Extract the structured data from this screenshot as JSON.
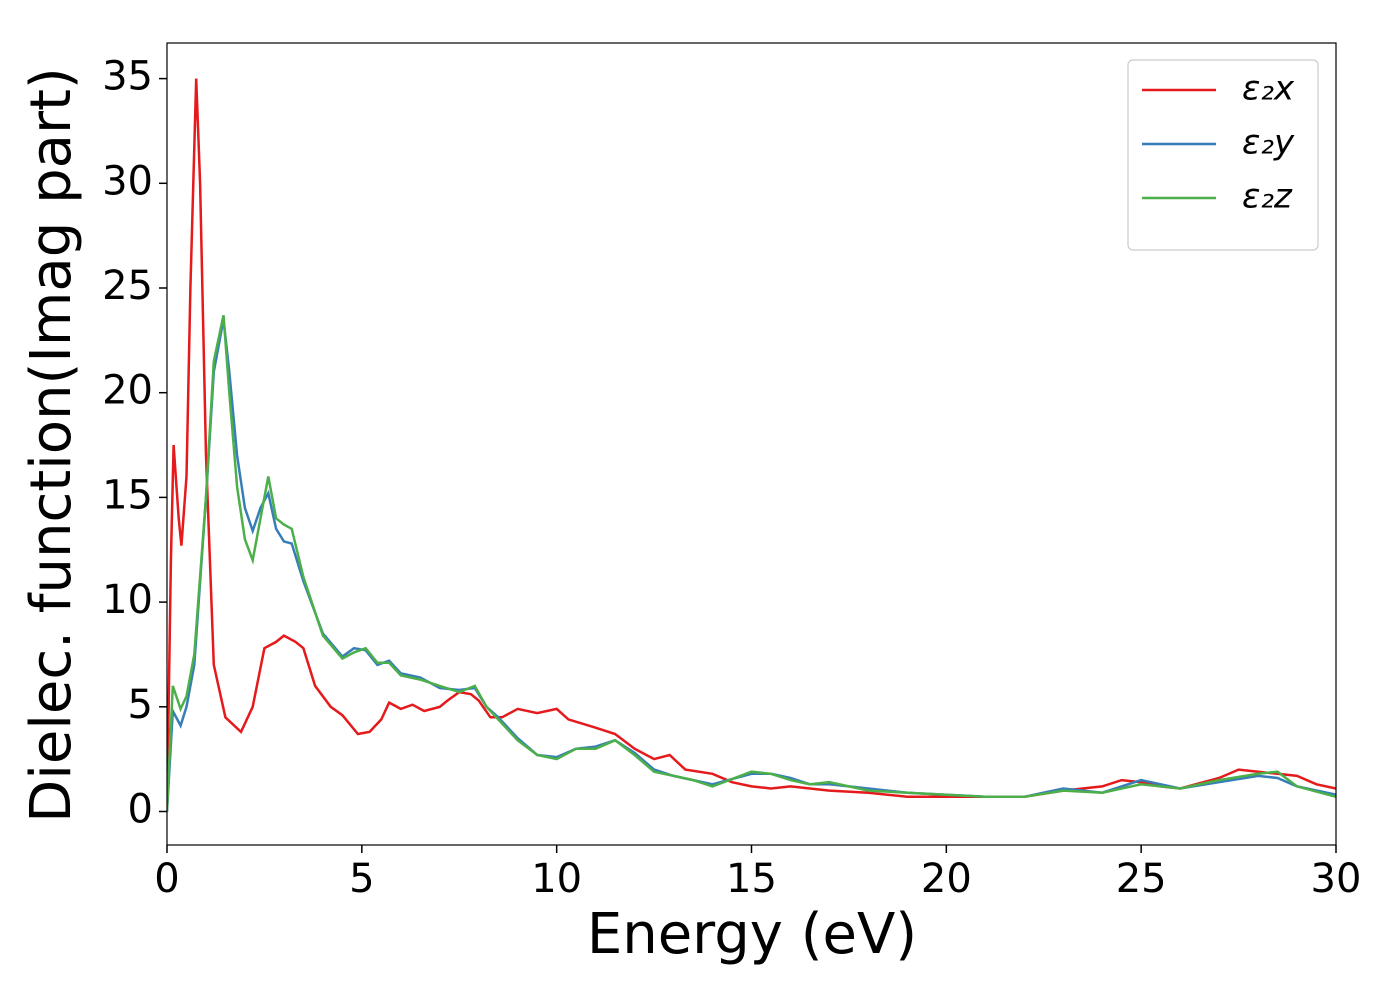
{
  "chart_data": {
    "type": "line",
    "xlabel": "Energy (eV)",
    "ylabel": "Dielec. function(Imag part)",
    "xlim": [
      0,
      30
    ],
    "ylim": [
      -1.6,
      36.7
    ],
    "xticks": [
      0,
      5,
      10,
      15,
      20,
      25,
      30
    ],
    "yticks": [
      0,
      5,
      10,
      15,
      20,
      25,
      30,
      35
    ],
    "legend": "upper right",
    "series": [
      {
        "name": "ε₂x",
        "color": "#e41a1c",
        "x": [
          0,
          0.1,
          0.17,
          0.3,
          0.37,
          0.5,
          0.6,
          0.75,
          0.85,
          1.0,
          1.2,
          1.5,
          1.9,
          2.2,
          2.5,
          2.8,
          3.0,
          3.3,
          3.5,
          3.8,
          4.2,
          4.5,
          4.9,
          5.2,
          5.5,
          5.7,
          6.0,
          6.3,
          6.6,
          7.0,
          7.2,
          7.5,
          7.8,
          8.0,
          8.3,
          8.6,
          9.0,
          9.5,
          10.0,
          10.3,
          11.0,
          11.5,
          12.0,
          12.5,
          12.9,
          13.3,
          14.0,
          14.5,
          15.0,
          15.5,
          16.0,
          16.5,
          17.0,
          18.0,
          19.0,
          20.0,
          21.0,
          22.0,
          23.0,
          24.0,
          24.5,
          25.0,
          25.5,
          26.0,
          27.0,
          27.5,
          28.0,
          28.5,
          29.0,
          29.5,
          30.0
        ],
        "values": [
          0,
          12,
          17.5,
          14,
          12.7,
          16,
          25,
          35,
          30,
          17,
          7,
          4.5,
          3.8,
          5,
          7.8,
          8.1,
          8.4,
          8.1,
          7.8,
          6,
          5,
          4.6,
          3.7,
          3.8,
          4.4,
          5.2,
          4.9,
          5.1,
          4.8,
          5,
          5.3,
          5.7,
          5.6,
          5.3,
          4.5,
          4.5,
          4.9,
          4.7,
          4.9,
          4.4,
          4.0,
          3.7,
          3.0,
          2.5,
          2.7,
          2.0,
          1.8,
          1.4,
          1.2,
          1.1,
          1.2,
          1.1,
          1.0,
          0.9,
          0.7,
          0.7,
          0.7,
          0.7,
          1.0,
          1.2,
          1.5,
          1.4,
          1.2,
          1.1,
          1.6,
          2.0,
          1.9,
          1.8,
          1.7,
          1.3,
          1.1
        ]
      },
      {
        "name": "ε₂y",
        "color": "#377eb8",
        "x": [
          0,
          0.15,
          0.35,
          0.5,
          0.7,
          1.0,
          1.2,
          1.45,
          1.6,
          1.8,
          2.0,
          2.2,
          2.4,
          2.6,
          2.8,
          3.0,
          3.2,
          3.5,
          4.0,
          4.5,
          4.8,
          5.1,
          5.4,
          5.7,
          6.0,
          6.5,
          7.0,
          7.5,
          7.9,
          8.2,
          8.5,
          9.0,
          9.5,
          10.0,
          10.5,
          11.0,
          11.5,
          12.0,
          12.5,
          13.0,
          13.5,
          14.0,
          15.0,
          15.5,
          16.0,
          16.5,
          17.0,
          18.0,
          19.0,
          20.0,
          21.0,
          22.0,
          23.0,
          24.0,
          25.0,
          26.0,
          27.0,
          28.0,
          28.5,
          29.0,
          30.0
        ],
        "values": [
          0,
          4.8,
          4.1,
          5.0,
          7,
          15,
          21,
          23.5,
          21,
          17,
          14.5,
          13.4,
          14.5,
          15.2,
          13.5,
          12.9,
          12.8,
          11,
          8.5,
          7.4,
          7.8,
          7.7,
          7.0,
          7.2,
          6.6,
          6.4,
          5.9,
          5.8,
          5.9,
          5.0,
          4.5,
          3.5,
          2.7,
          2.6,
          3.0,
          3.1,
          3.4,
          2.8,
          2.0,
          1.7,
          1.5,
          1.3,
          1.8,
          1.8,
          1.6,
          1.3,
          1.3,
          1.1,
          0.9,
          0.8,
          0.7,
          0.7,
          1.1,
          0.9,
          1.5,
          1.1,
          1.4,
          1.7,
          1.6,
          1.2,
          0.8
        ]
      },
      {
        "name": "ε₂z",
        "color": "#4daf4a",
        "x": [
          0,
          0.15,
          0.35,
          0.5,
          0.7,
          1.0,
          1.2,
          1.45,
          1.6,
          1.8,
          2.0,
          2.2,
          2.4,
          2.6,
          2.8,
          3.0,
          3.2,
          3.5,
          4.0,
          4.5,
          4.8,
          5.1,
          5.4,
          5.7,
          6.0,
          6.5,
          7.0,
          7.5,
          7.9,
          8.2,
          8.5,
          9.0,
          9.5,
          10.0,
          10.5,
          11.0,
          11.5,
          12.0,
          12.5,
          13.0,
          13.5,
          14.0,
          15.0,
          15.5,
          16.0,
          16.5,
          17.0,
          18.0,
          19.0,
          20.0,
          21.0,
          22.0,
          23.0,
          24.0,
          25.0,
          26.0,
          27.0,
          28.0,
          28.5,
          29.0,
          30.0
        ],
        "values": [
          0,
          6.0,
          4.9,
          5.5,
          7.5,
          15,
          21.5,
          23.7,
          20,
          15.5,
          13,
          12,
          14,
          16,
          14,
          13.7,
          13.5,
          11.2,
          8.4,
          7.3,
          7.6,
          7.8,
          7.1,
          7.1,
          6.5,
          6.3,
          6.0,
          5.7,
          6.0,
          5.0,
          4.4,
          3.4,
          2.7,
          2.5,
          3.0,
          3.0,
          3.4,
          2.7,
          1.9,
          1.7,
          1.5,
          1.2,
          1.9,
          1.8,
          1.5,
          1.3,
          1.4,
          1.0,
          0.9,
          0.8,
          0.7,
          0.7,
          1.0,
          0.9,
          1.3,
          1.1,
          1.5,
          1.8,
          1.9,
          1.2,
          0.7
        ]
      }
    ]
  }
}
